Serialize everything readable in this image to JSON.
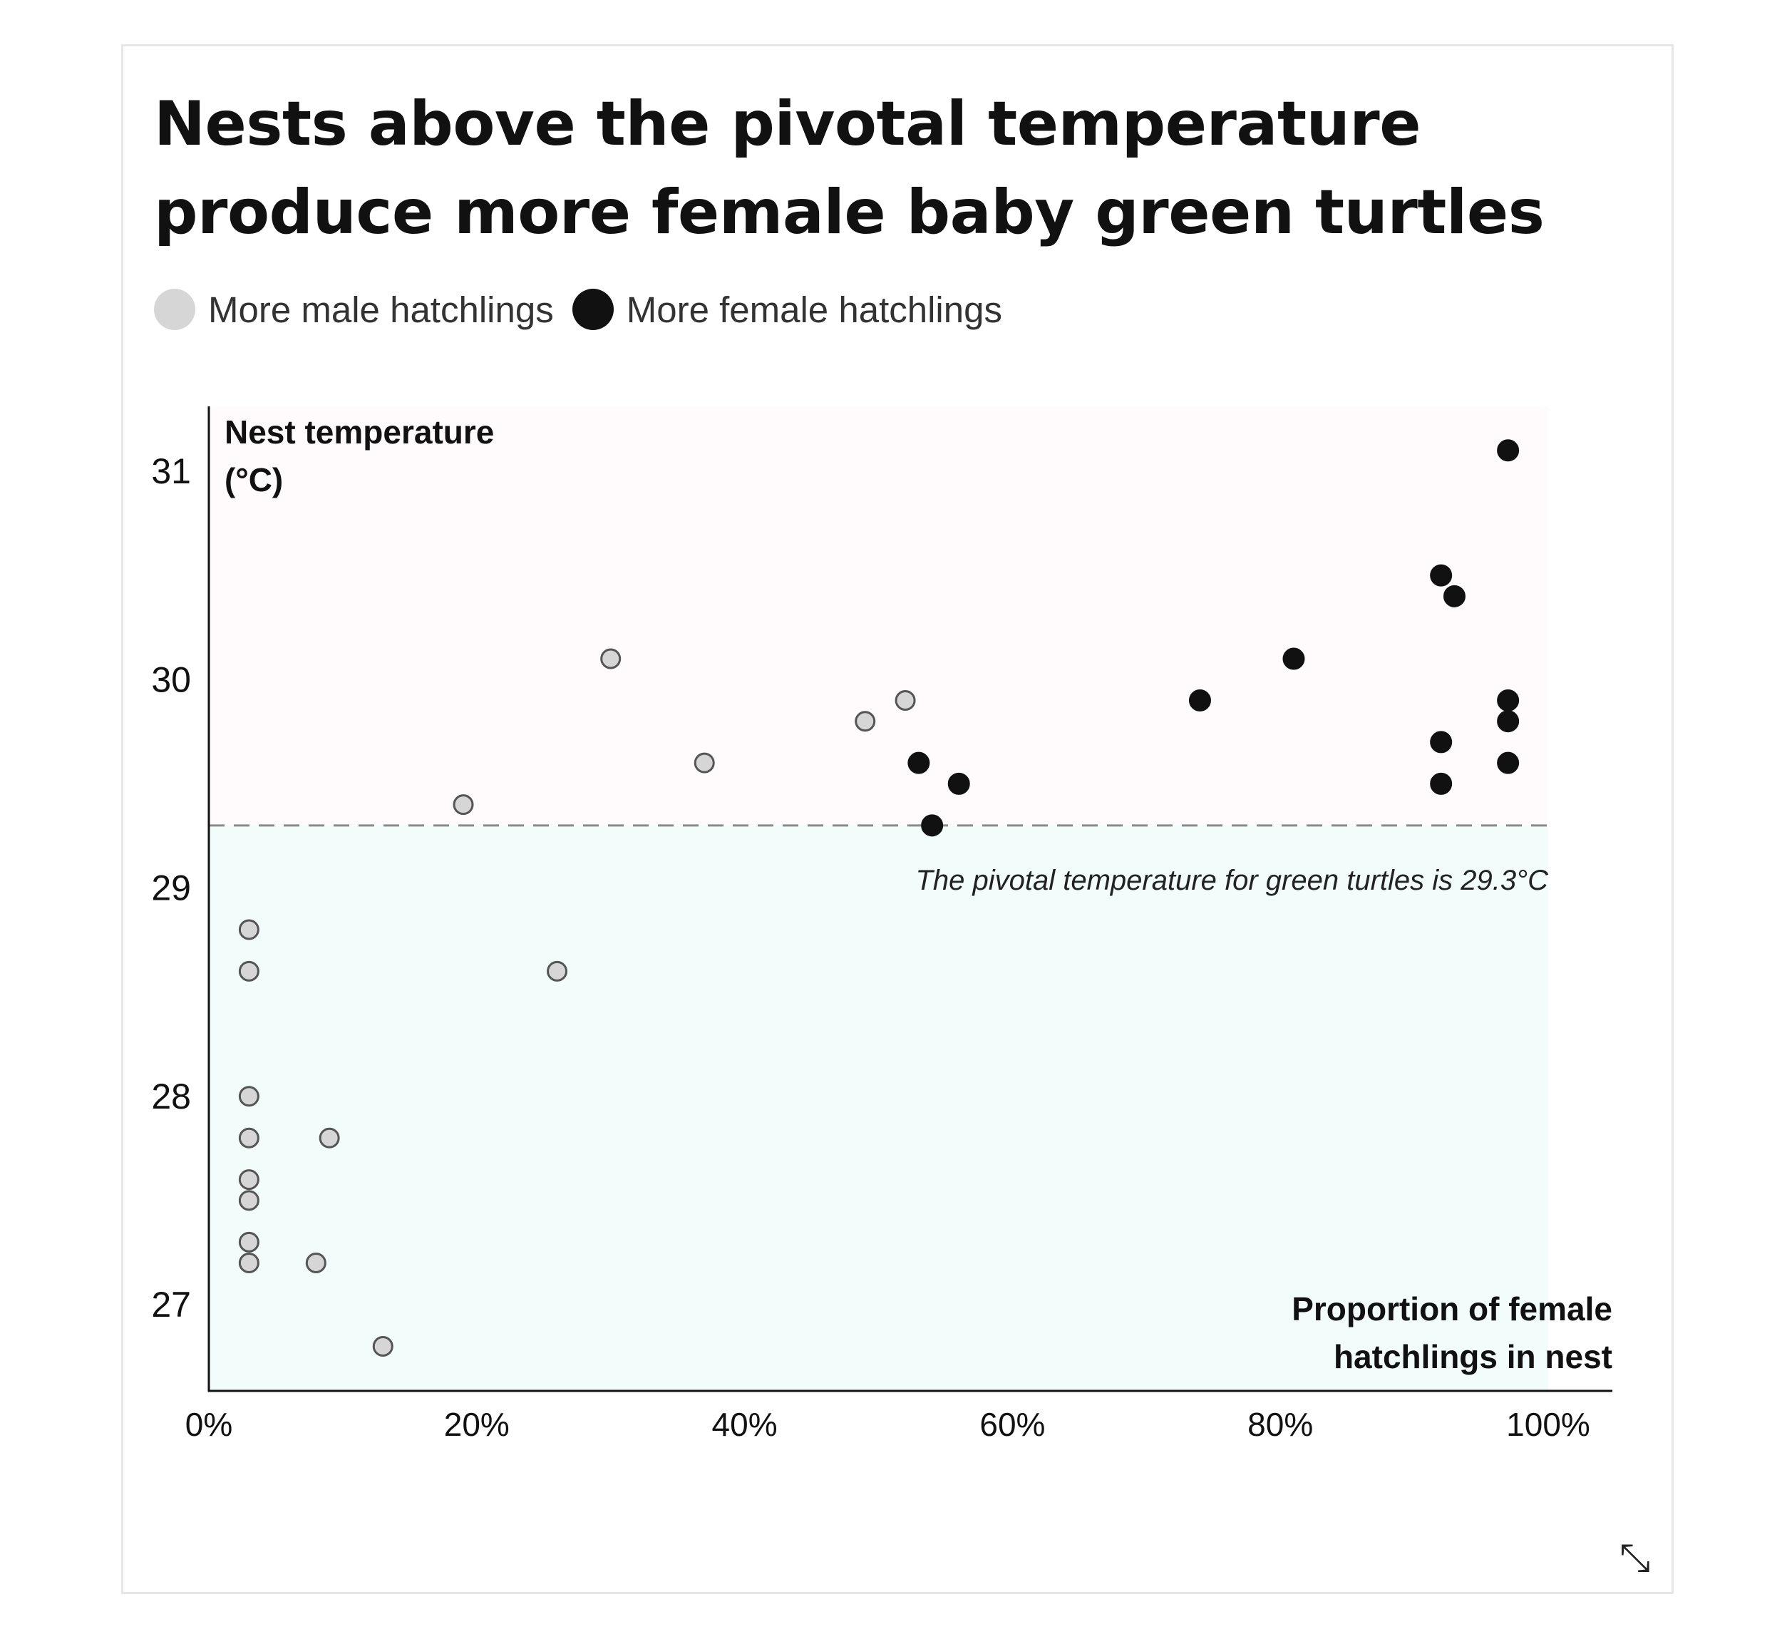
{
  "title": "Nests above the pivotal temperature produce more female baby green turtles",
  "legend": {
    "male_label": "More male hatchlings",
    "female_label": "More female hatchlings",
    "male_color": "#d6d6d6",
    "female_color": "#111111"
  },
  "colors": {
    "above_band": "#fffafb",
    "below_band": "#f2fcfb",
    "axis": "#111111",
    "pivot_line": "#8a8a8a"
  },
  "chart_data": {
    "type": "scatter",
    "title": "Nests above the pivotal temperature produce more female baby green turtles",
    "xlabel": "Proportion of female hatchlings in nest",
    "ylabel": "Nest temperature (°C)",
    "xlim": [
      0,
      1
    ],
    "ylim": [
      26.6,
      31.3
    ],
    "x_ticks": [
      0,
      0.2,
      0.4,
      0.6,
      0.8,
      1.0
    ],
    "x_tick_labels": [
      "0%",
      "20%",
      "40%",
      "60%",
      "80%",
      "100%"
    ],
    "y_ticks": [
      27,
      28,
      29,
      30,
      31
    ],
    "y_tick_labels": [
      "27",
      "28",
      "29",
      "30",
      "31"
    ],
    "grid": false,
    "legend_position": "top-left",
    "pivot": {
      "value": 29.3,
      "label": "The pivotal temperature for green turtles is 29.3°C"
    },
    "series": [
      {
        "name": "More male hatchlings",
        "points": [
          {
            "x": 0.03,
            "y": 28.8
          },
          {
            "x": 0.03,
            "y": 28.6
          },
          {
            "x": 0.03,
            "y": 28.0
          },
          {
            "x": 0.03,
            "y": 27.8
          },
          {
            "x": 0.03,
            "y": 27.6
          },
          {
            "x": 0.03,
            "y": 27.5
          },
          {
            "x": 0.03,
            "y": 27.3
          },
          {
            "x": 0.03,
            "y": 27.2
          },
          {
            "x": 0.08,
            "y": 27.2
          },
          {
            "x": 0.09,
            "y": 27.8
          },
          {
            "x": 0.13,
            "y": 26.8
          },
          {
            "x": 0.19,
            "y": 29.4
          },
          {
            "x": 0.26,
            "y": 28.6
          },
          {
            "x": 0.3,
            "y": 30.1
          },
          {
            "x": 0.37,
            "y": 29.6
          },
          {
            "x": 0.49,
            "y": 29.8
          },
          {
            "x": 0.52,
            "y": 29.9
          }
        ]
      },
      {
        "name": "More female hatchlings",
        "points": [
          {
            "x": 0.53,
            "y": 29.6
          },
          {
            "x": 0.54,
            "y": 29.3
          },
          {
            "x": 0.56,
            "y": 29.5
          },
          {
            "x": 0.74,
            "y": 29.9
          },
          {
            "x": 0.81,
            "y": 30.1
          },
          {
            "x": 0.92,
            "y": 30.5
          },
          {
            "x": 0.93,
            "y": 30.4
          },
          {
            "x": 0.92,
            "y": 29.7
          },
          {
            "x": 0.92,
            "y": 29.5
          },
          {
            "x": 0.97,
            "y": 31.1
          },
          {
            "x": 0.97,
            "y": 29.9
          },
          {
            "x": 0.97,
            "y": 29.8
          },
          {
            "x": 0.97,
            "y": 29.6
          }
        ]
      }
    ]
  }
}
